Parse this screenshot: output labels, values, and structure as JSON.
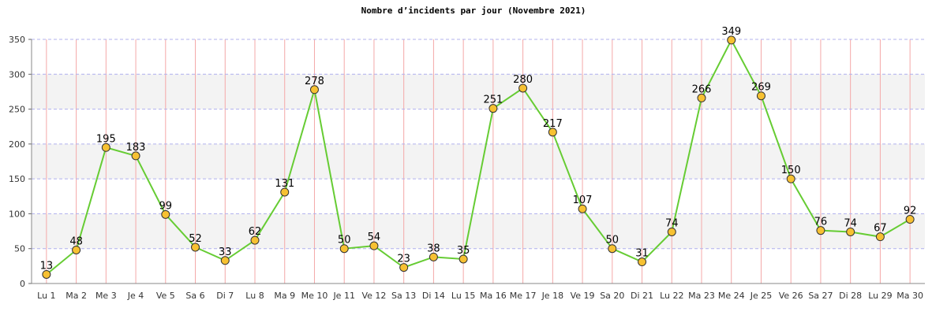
{
  "chart_data": {
    "type": "line",
    "title": "Nombre d’incidents par jour (Novembre 2021)",
    "categories": [
      "Lu 1",
      "Ma 2",
      "Me 3",
      "Je 4",
      "Ve 5",
      "Sa 6",
      "Di 7",
      "Lu 8",
      "Ma 9",
      "Me 10",
      "Je 11",
      "Ve 12",
      "Sa 13",
      "Di 14",
      "Lu 15",
      "Ma 16",
      "Me 17",
      "Je 18",
      "Ve 19",
      "Sa 20",
      "Di 21",
      "Lu 22",
      "Ma 23",
      "Me 24",
      "Je 25",
      "Ve 26",
      "Sa 27",
      "Di 28",
      "Lu 29",
      "Ma 30"
    ],
    "series": [
      {
        "name": "Incidents",
        "color": "#66cc33",
        "marker_color": "#f7c132",
        "values": [
          13,
          48,
          195,
          183,
          99,
          52,
          33,
          62,
          131,
          278,
          50,
          54,
          23,
          38,
          35,
          251,
          280,
          217,
          107,
          50,
          31,
          74,
          266,
          349,
          269,
          150,
          76,
          74,
          67,
          92
        ]
      }
    ],
    "ylim": [
      0,
      350
    ],
    "yticks": [
      0,
      50,
      100,
      150,
      200,
      250,
      300,
      350
    ],
    "grid": true
  }
}
